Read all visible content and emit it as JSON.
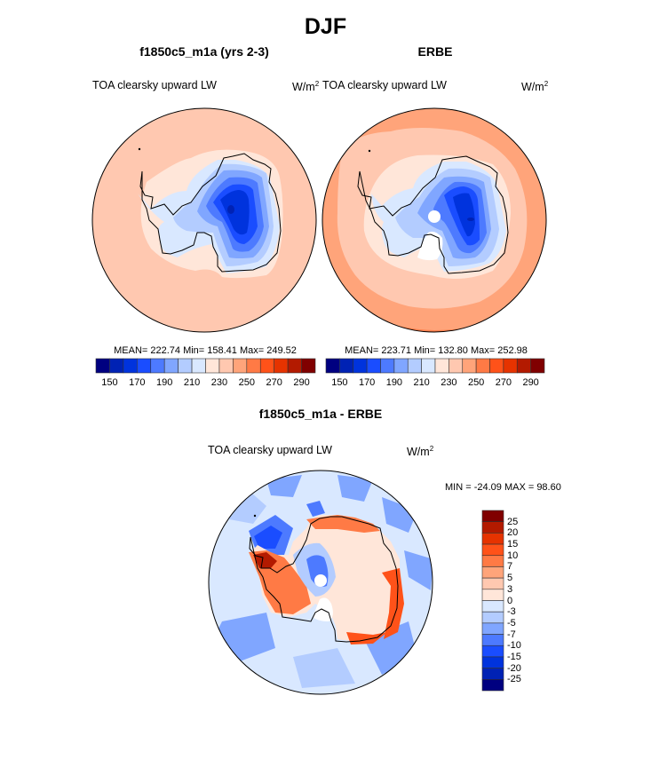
{
  "page": {
    "title": "DJF"
  },
  "panels": [
    {
      "id": "model",
      "title": "f1850c5_m1a (yrs 2-3)",
      "left_label": "TOA clearsky upward LW",
      "units_base": "W/m",
      "units_exp": "2",
      "stats": "MEAN= 222.74  Min= 158.41  Max= 249.52"
    },
    {
      "id": "obs",
      "title": "ERBE",
      "left_label": "TOA clearsky upward LW",
      "units_base": "W/m",
      "units_exp": "2",
      "stats": "MEAN= 223.71  Min= 132.80  Max= 252.98"
    },
    {
      "id": "diff",
      "title": "f1850c5_m1a - ERBE",
      "left_label": "TOA clearsky upward LW",
      "units_base": "W/m",
      "units_exp": "2",
      "stats": "MIN = -24.09 MAX =  98.60"
    }
  ],
  "chart_data": [
    {
      "type": "heatmap",
      "projection": "south-polar-stereographic",
      "title": "f1850c5_m1a (yrs 2-3)",
      "variable": "TOA clearsky upward LW",
      "units": "W/m2",
      "mean": 222.74,
      "min": 158.41,
      "max": 249.52,
      "colorbar": {
        "orientation": "horizontal",
        "levels": [
          150,
          160,
          170,
          180,
          190,
          200,
          210,
          220,
          230,
          240,
          250,
          260,
          270,
          280,
          290
        ],
        "tick_labels": [
          "150",
          "170",
          "190",
          "210",
          "230",
          "250",
          "270",
          "290"
        ],
        "colors": [
          "#000080",
          "#0022b4",
          "#0033dd",
          "#1a4dff",
          "#4d7aff",
          "#80a6ff",
          "#b3ccff",
          "#d9e8ff",
          "#ffe6d9",
          "#ffc8b0",
          "#ffa47a",
          "#ff7a45",
          "#ff5219",
          "#e63300",
          "#b31a00",
          "#800000"
        ]
      },
      "regions": [
        {
          "name": "open-ocean-outer",
          "band": "240-250"
        },
        {
          "name": "open-ocean-inner",
          "band": "230-240"
        },
        {
          "name": "sea-ice-edge",
          "band": "220-230"
        },
        {
          "name": "ross-weddell-shelves",
          "band": "210-220"
        },
        {
          "name": "west-antarctica",
          "band": "190-210"
        },
        {
          "name": "east-antarctic-plateau",
          "band": "160-180"
        },
        {
          "name": "plateau-minimum",
          "band": "150-160"
        }
      ]
    },
    {
      "type": "heatmap",
      "projection": "south-polar-stereographic",
      "title": "ERBE",
      "variable": "TOA clearsky upward LW",
      "units": "W/m2",
      "mean": 223.71,
      "min": 132.8,
      "max": 252.98,
      "colorbar": {
        "orientation": "horizontal",
        "levels": [
          150,
          160,
          170,
          180,
          190,
          200,
          210,
          220,
          230,
          240,
          250,
          260,
          270,
          280,
          290
        ],
        "tick_labels": [
          "150",
          "170",
          "190",
          "210",
          "230",
          "250",
          "270",
          "290"
        ],
        "colors": [
          "#000080",
          "#0022b4",
          "#0033dd",
          "#1a4dff",
          "#4d7aff",
          "#80a6ff",
          "#b3ccff",
          "#d9e8ff",
          "#ffe6d9",
          "#ffc8b0",
          "#ffa47a",
          "#ff7a45",
          "#ff5219",
          "#e63300",
          "#b31a00",
          "#800000"
        ]
      },
      "missing": [
        "pole-hole",
        "ross-ice-shelf"
      ],
      "regions": [
        {
          "name": "open-ocean-outer",
          "band": "250-260"
        },
        {
          "name": "open-ocean-mid",
          "band": "240-250"
        },
        {
          "name": "sea-ice-zone",
          "band": "230-240"
        },
        {
          "name": "coastal-margin",
          "band": "210-220"
        },
        {
          "name": "west-antarctica",
          "band": "190-210"
        },
        {
          "name": "east-antarctic-plateau",
          "band": "160-180"
        }
      ]
    },
    {
      "type": "heatmap",
      "projection": "south-polar-stereographic",
      "title": "f1850c5_m1a - ERBE",
      "variable": "TOA clearsky upward LW",
      "units": "W/m2",
      "min": -24.09,
      "max": 98.6,
      "colorbar": {
        "orientation": "vertical",
        "levels": [
          -25,
          -20,
          -15,
          -10,
          -7,
          -5,
          -3,
          0,
          3,
          5,
          7,
          10,
          15,
          20,
          25
        ],
        "tick_labels": [
          "25",
          "20",
          "15",
          "10",
          "7",
          "5",
          "3",
          "0",
          "-3",
          "-5",
          "-7",
          "-10",
          "-15",
          "-20",
          "-25"
        ],
        "colors_top_to_bottom": [
          "#800000",
          "#b31a00",
          "#e63300",
          "#ff5219",
          "#ff7a45",
          "#ffa47a",
          "#ffc8b0",
          "#ffe6d9",
          "#d9e8ff",
          "#b3ccff",
          "#80a6ff",
          "#4d7aff",
          "#1a4dff",
          "#0033dd",
          "#0022b4",
          "#000080"
        ]
      },
      "missing": [
        "pole-hole",
        "ross-ice-shelf"
      ],
      "regions": [
        {
          "name": "southern-ocean",
          "band": "-7 to 0"
        },
        {
          "name": "coastal-east-antarctica",
          "band": "7 to 15"
        },
        {
          "name": "antarctic-peninsula",
          "band": "15 to 25"
        },
        {
          "name": "west-antarctica",
          "band": "5 to 15"
        },
        {
          "name": "central-plateau",
          "band": "-10 to -3"
        }
      ]
    }
  ]
}
